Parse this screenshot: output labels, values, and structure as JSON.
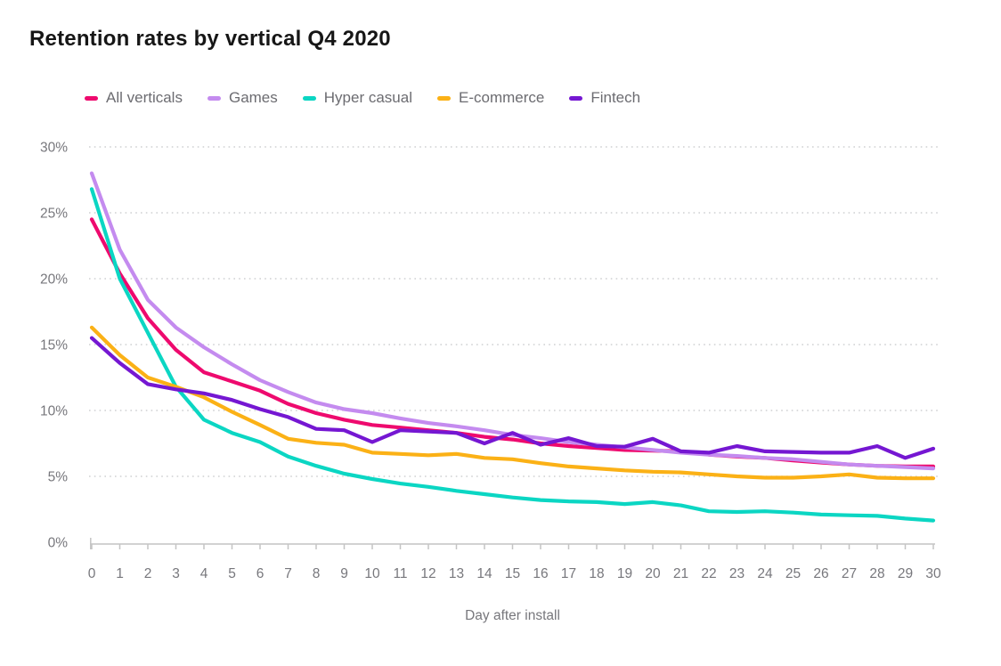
{
  "title": "Retention rates by vertical Q4 2020",
  "legend": [
    {
      "label": "All verticals",
      "color": "#ee0a6e"
    },
    {
      "label": "Games",
      "color": "#c48bef"
    },
    {
      "label": "Hyper casual",
      "color": "#0bd6c3"
    },
    {
      "label": "E-commerce",
      "color": "#fbb116"
    },
    {
      "label": "Fintech",
      "color": "#7517d2"
    }
  ],
  "chart_data": {
    "type": "line",
    "title": "Retention rates by vertical Q4 2020",
    "xlabel": "Day after install",
    "ylabel": "",
    "x": [
      0,
      1,
      2,
      3,
      4,
      5,
      6,
      7,
      8,
      9,
      10,
      11,
      12,
      13,
      14,
      15,
      16,
      17,
      18,
      19,
      20,
      21,
      22,
      23,
      24,
      25,
      26,
      27,
      28,
      29,
      30
    ],
    "ylim": [
      0,
      30
    ],
    "ytick_values": [
      0,
      5,
      10,
      15,
      20,
      25,
      30
    ],
    "yticks": [
      "0%",
      "5%",
      "10%",
      "15%",
      "20%",
      "25%",
      "30%"
    ],
    "grid": "horizontal-dotted",
    "legend_position": "top",
    "series": [
      {
        "name": "All verticals",
        "color": "#ee0a6e",
        "values": [
          24.5,
          20.4,
          17.0,
          14.6,
          12.9,
          12.2,
          11.5,
          10.5,
          9.8,
          9.3,
          8.9,
          8.7,
          8.5,
          8.3,
          8.0,
          7.8,
          7.5,
          7.3,
          7.15,
          7.0,
          6.95,
          6.9,
          6.65,
          6.5,
          6.4,
          6.2,
          6.05,
          5.9,
          5.8,
          5.75,
          5.75
        ]
      },
      {
        "name": "Games",
        "color": "#c48bef",
        "values": [
          28.0,
          22.2,
          18.4,
          16.3,
          14.8,
          13.5,
          12.3,
          11.4,
          10.6,
          10.1,
          9.8,
          9.4,
          9.05,
          8.8,
          8.5,
          8.15,
          7.9,
          7.6,
          7.4,
          7.2,
          7.0,
          6.8,
          6.65,
          6.55,
          6.4,
          6.3,
          6.1,
          5.9,
          5.8,
          5.7,
          5.6
        ]
      },
      {
        "name": "Hyper casual",
        "color": "#0bd6c3",
        "values": [
          26.8,
          20.0,
          15.9,
          11.8,
          9.3,
          8.3,
          7.6,
          6.5,
          5.8,
          5.2,
          4.8,
          4.45,
          4.2,
          3.9,
          3.65,
          3.4,
          3.2,
          3.1,
          3.05,
          2.9,
          3.05,
          2.8,
          2.35,
          2.3,
          2.35,
          2.25,
          2.1,
          2.05,
          2.0,
          1.8,
          1.65
        ]
      },
      {
        "name": "E-commerce",
        "color": "#fbb116",
        "values": [
          16.3,
          14.2,
          12.5,
          11.8,
          11.0,
          9.9,
          8.9,
          7.85,
          7.55,
          7.4,
          6.8,
          6.7,
          6.6,
          6.7,
          6.4,
          6.3,
          6.0,
          5.75,
          5.6,
          5.45,
          5.35,
          5.3,
          5.15,
          5.0,
          4.9,
          4.9,
          5.0,
          5.15,
          4.9,
          4.85,
          4.85
        ]
      },
      {
        "name": "Fintech",
        "color": "#7517d2",
        "values": [
          15.5,
          13.6,
          12.0,
          11.6,
          11.3,
          10.8,
          10.1,
          9.5,
          8.6,
          8.5,
          7.6,
          8.5,
          8.4,
          8.3,
          7.5,
          8.3,
          7.4,
          7.9,
          7.3,
          7.25,
          7.85,
          6.9,
          6.8,
          7.3,
          6.9,
          6.85,
          6.8,
          6.8,
          7.3,
          6.4,
          7.1
        ]
      }
    ]
  },
  "colors": {
    "title_text": "#161616",
    "axis_text": "#77777c",
    "legend_text": "#6c6c71",
    "gridline": "#cfd0d2",
    "axis_line": "#c4c4c4",
    "background": "#ffffff"
  }
}
